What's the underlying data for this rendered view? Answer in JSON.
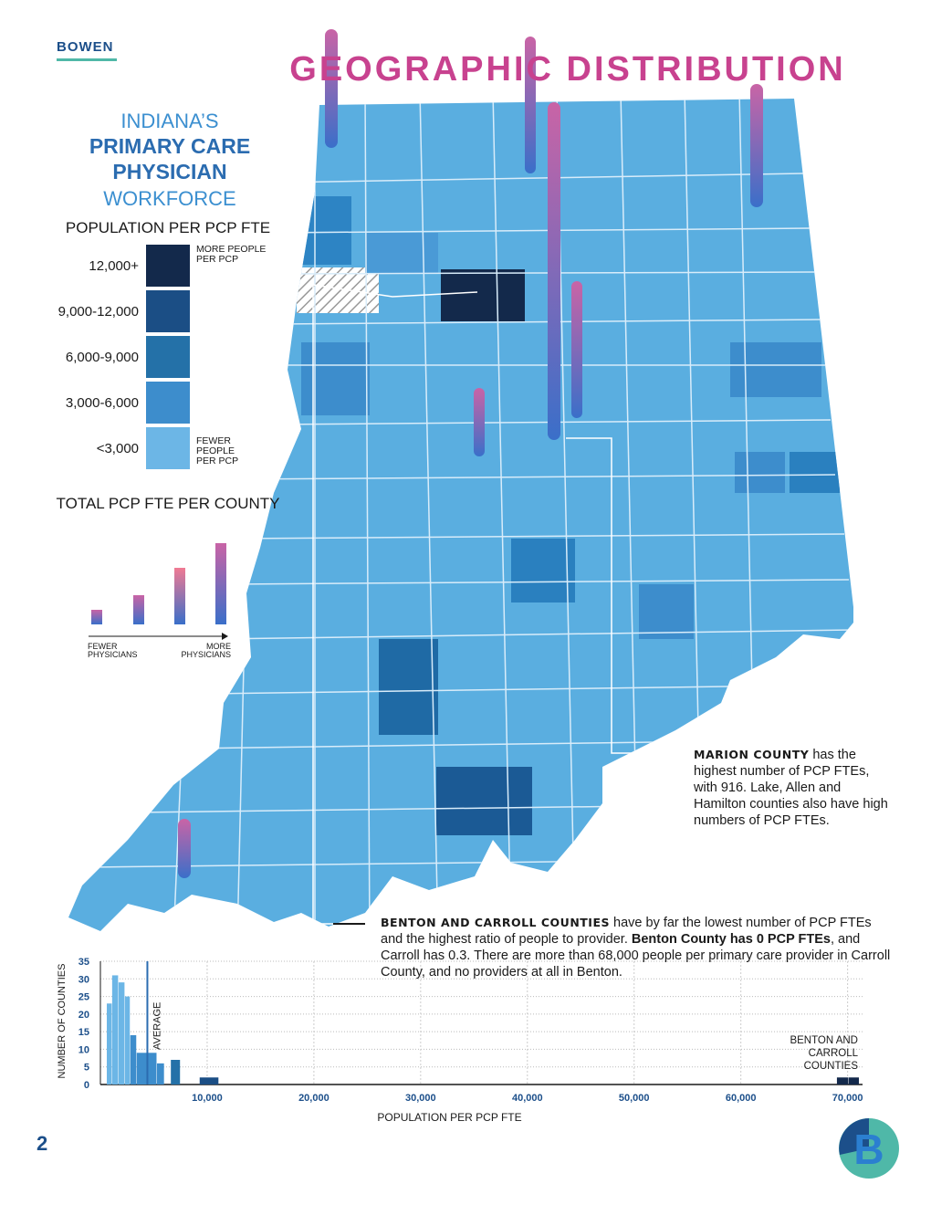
{
  "header": {
    "brand": "BOWEN",
    "title": "GEOGRAPHIC DISTRIBUTION",
    "page_number": "2"
  },
  "sidebar": {
    "kicker": "INDIANA’S",
    "title_lines": [
      "PRIMARY CARE",
      "PHYSICIAN"
    ],
    "subtitle": "WORKFORCE",
    "population_legend": {
      "title": "POPULATION PER PCP FTE",
      "items": [
        {
          "label": "12,000+",
          "color": "#13294b"
        },
        {
          "label": "9,000-12,000",
          "color": "#1b4e85"
        },
        {
          "label": "6,000-9,000",
          "color": "#2471a8"
        },
        {
          "label": "3,000-6,000",
          "color": "#3d8dcc"
        },
        {
          "label": "<3,000",
          "color": "#6cb6e6"
        }
      ],
      "high_note": "MORE PEOPLE PER PCP",
      "low_note": "FEWER PEOPLE PER PCP"
    },
    "fte_legend": {
      "title": "TOTAL PCP FTE PER COUNTY",
      "low_note": "FEWER PHYSICIANS",
      "high_note": "MORE PHYSICIANS"
    }
  },
  "annotations": {
    "marion": [
      "MARION COUNTY",
      " has the highest number of PCP FTEs, with 916. Lake, Allen and Hamilton counties also have high numbers of PCP FTEs."
    ],
    "benton": [
      "BENTON AND CARROLL COUNTIES",
      " have by far the lowest number of PCP FTEs and the highest ratio of people to provider. ",
      "Benton County has 0 PCP FTEs",
      ", and Carroll has 0.3. There are more than 68,000 people per primary care provider in Carroll County, and no providers at all in Benton."
    ]
  },
  "chart_data": {
    "type": "histogram",
    "x_label": "POPULATION PER PCP FTE",
    "y_label": "NUMBER OF COUNTIES",
    "bins": [
      600,
      1100,
      1700,
      2300,
      2800,
      3400,
      4400,
      5300,
      6000,
      6600,
      7500,
      9300,
      11100,
      69000,
      70100,
      71100
    ],
    "counts": [
      23,
      31,
      29,
      25,
      14,
      9,
      9,
      6,
      0,
      7,
      0,
      2,
      0,
      2,
      2
    ],
    "colors": [
      "#6cb6e6",
      "#6cb6e6",
      "#6cb6e6",
      "#6cb6e6",
      "#3d8dcc",
      "#3d8dcc",
      "#3d8dcc",
      "#3d8dcc",
      "#2471a8",
      "#2471a8",
      "#1b4e85",
      "#1b4e85",
      "#13294b",
      "#13294b",
      "#13294b"
    ],
    "xlim": [
      0,
      71400
    ],
    "ylim": [
      0,
      35
    ],
    "xticks": [
      {
        "value": 10000,
        "label": "10,000"
      },
      {
        "value": 20000,
        "label": "20,000"
      },
      {
        "value": 30000,
        "label": "30,000"
      },
      {
        "value": 40000,
        "label": "40,000"
      },
      {
        "value": 50000,
        "label": "50,000"
      },
      {
        "value": 60000,
        "label": "60,000"
      },
      {
        "value": 70000,
        "label": "70,000"
      }
    ],
    "yticks": [
      0,
      5,
      10,
      15,
      20,
      25,
      30,
      35
    ],
    "grid": true,
    "average": 4400,
    "average_label": "AVERAGE",
    "average_color": "#2b6cb0",
    "annotation": "BENTON AND CARROLL COUNTIES"
  }
}
